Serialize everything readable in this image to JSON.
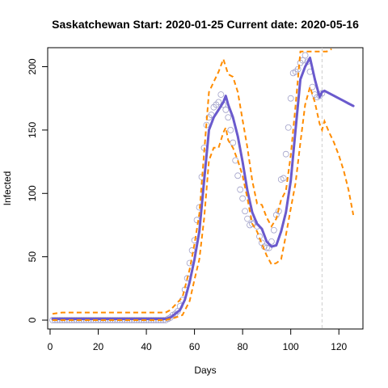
{
  "chart_data": {
    "type": "line",
    "title": "Saskatchewan Start:  2020-01-25   Current date:  2020-05-16",
    "xlabel": "Days",
    "ylabel": "Infected",
    "xlim": [
      -1,
      130
    ],
    "ylim": [
      -7,
      215
    ],
    "grid": false,
    "legend": "none",
    "x_ticks": [
      0,
      20,
      40,
      60,
      80,
      100,
      120
    ],
    "y_ticks": [
      0,
      50,
      100,
      150,
      200
    ],
    "vline": {
      "x": 113,
      "style": "dashed",
      "color": "#cccccc"
    },
    "colors": {
      "observed": "#a0a0c8",
      "fitted": "#6a5acd",
      "bounds": "#ff8c00"
    },
    "series": [
      {
        "type": "scatter",
        "x": [
          1,
          2,
          3,
          4,
          5,
          6,
          7,
          8,
          9,
          10,
          11,
          12,
          13,
          14,
          15,
          16,
          17,
          18,
          19,
          20,
          21,
          22,
          23,
          24,
          25,
          26,
          27,
          28,
          29,
          30,
          31,
          32,
          33,
          34,
          35,
          36,
          37,
          38,
          39,
          40,
          41,
          42,
          43,
          44,
          45,
          46,
          47,
          48,
          49,
          50,
          51,
          52,
          53,
          54,
          55,
          56,
          57,
          58,
          59,
          60,
          61,
          62,
          63,
          64,
          65,
          66,
          67,
          68,
          69,
          70,
          71,
          72,
          73,
          74,
          75,
          76,
          77,
          78,
          79,
          80,
          81,
          82,
          83,
          84,
          85,
          86,
          87,
          88,
          89,
          90,
          91,
          92,
          93,
          94,
          95,
          96,
          97,
          98,
          99,
          100,
          101,
          102,
          103,
          104,
          105,
          106,
          107,
          108,
          109,
          110,
          111,
          112,
          113
        ],
        "values": [
          0,
          0,
          0,
          0,
          0,
          0,
          0,
          0,
          0,
          0,
          0,
          0,
          0,
          0,
          0,
          0,
          0,
          0,
          0,
          0,
          0,
          0,
          0,
          0,
          0,
          0,
          0,
          0,
          0,
          0,
          0,
          0,
          0,
          0,
          0,
          0,
          0,
          0,
          0,
          0,
          0,
          0,
          0,
          0,
          0,
          0,
          0,
          0,
          1,
          2,
          4,
          5,
          7,
          11,
          16,
          24,
          33,
          45,
          55,
          63,
          79,
          89,
          113,
          136,
          154,
          160,
          162,
          168,
          170,
          172,
          178,
          170,
          166,
          160,
          150,
          140,
          126,
          114,
          103,
          96,
          86,
          80,
          75,
          76,
          77,
          74,
          66,
          61,
          58,
          57,
          57,
          62,
          71,
          83,
          86,
          111,
          112,
          131,
          152,
          175,
          195,
          196,
          198,
          203,
          205,
          209,
          204,
          196,
          184,
          178,
          176,
          177,
          179
        ]
      },
      {
        "type": "line",
        "x": [
          1,
          48,
          50,
          52,
          54,
          56,
          58,
          60,
          62,
          64,
          66,
          68,
          70,
          72,
          73,
          74,
          76,
          78,
          80,
          82,
          84,
          86,
          88,
          90,
          92,
          94,
          96,
          98,
          100,
          102,
          104,
          106,
          108,
          110,
          112,
          113,
          114,
          116,
          118,
          120,
          122,
          124,
          126
        ],
        "values": [
          1,
          1,
          2,
          5,
          8,
          16,
          30,
          48,
          70,
          110,
          150,
          160,
          166,
          172,
          177,
          170,
          160,
          145,
          125,
          102,
          85,
          76,
          72,
          62,
          58,
          59,
          70,
          85,
          110,
          150,
          190,
          200,
          207,
          190,
          176,
          180,
          181,
          179,
          177,
          175,
          173,
          171,
          169
        ]
      },
      {
        "type": "line",
        "name": "upper",
        "x": [
          1,
          5,
          10,
          20,
          30,
          40,
          45,
          48,
          50,
          52,
          55,
          58,
          60,
          62,
          64,
          66,
          68,
          70,
          72,
          73,
          74,
          76,
          78,
          80,
          82,
          84,
          86,
          88,
          90,
          92,
          94,
          96,
          98,
          100,
          102,
          104,
          106,
          108,
          110,
          112,
          113,
          115,
          117
        ],
        "values": [
          5,
          6,
          6,
          6,
          6,
          6,
          6,
          6,
          8,
          12,
          18,
          40,
          60,
          84,
          132,
          180,
          188,
          196,
          206,
          200,
          194,
          192,
          180,
          158,
          136,
          110,
          92,
          91,
          81,
          74,
          80,
          95,
          102,
          130,
          169,
          212,
          212,
          212,
          212,
          212,
          212,
          212,
          214
        ]
      },
      {
        "type": "line",
        "name": "lower",
        "x": [
          1,
          10,
          20,
          30,
          40,
          48,
          50,
          52,
          55,
          58,
          60,
          62,
          64,
          66,
          68,
          70,
          72,
          73,
          74,
          76,
          78,
          80,
          82,
          84,
          86,
          88,
          90,
          92,
          94,
          96,
          98,
          100,
          102,
          104,
          106,
          108,
          110,
          112,
          113,
          114,
          116,
          118,
          120,
          122,
          124,
          126
        ],
        "values": [
          0,
          0,
          0,
          0,
          0,
          0,
          1,
          2,
          4,
          15,
          32,
          48,
          80,
          126,
          136,
          136,
          148,
          152,
          142,
          136,
          126,
          114,
          96,
          76,
          70,
          60,
          51,
          44,
          45,
          48,
          67,
          88,
          108,
          140,
          170,
          184,
          172,
          155,
          150,
          157,
          148,
          140,
          130,
          118,
          103,
          83
        ]
      }
    ]
  }
}
